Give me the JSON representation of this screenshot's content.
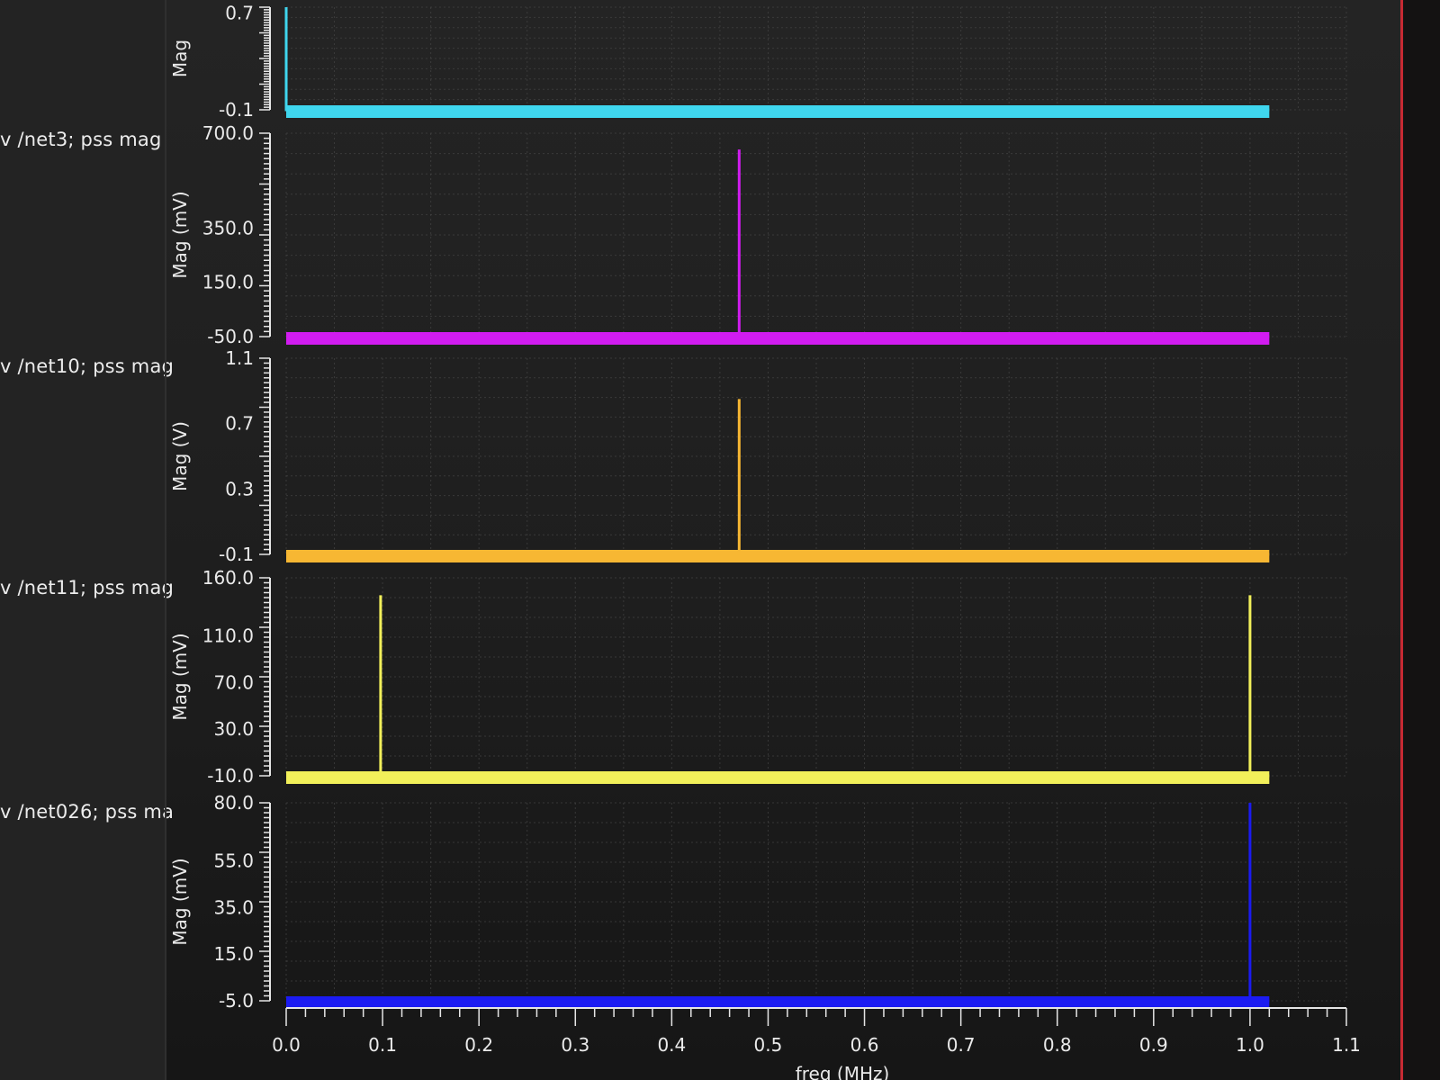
{
  "colors": {
    "background": "#1e1e1e",
    "grid": "#4a4a4a",
    "axis": "#e6e6e6",
    "frame_accent": "#c72a33"
  },
  "traces": [
    {
      "name": "v /net3; pss mag",
      "color": "#d11cf0"
    },
    {
      "name": "v /net10; pss mag",
      "color": "#f7b733"
    },
    {
      "name": "v /net11; pss mag",
      "color": "#f2f05a"
    },
    {
      "name": "v /net026; pss ma",
      "color": "#1b1bf2"
    }
  ],
  "chart_data": {
    "type": "line",
    "xlabel": "freq (MHz)",
    "xlim": [
      0.0,
      1.1
    ],
    "x_ticks": [
      "0.0",
      "0.1",
      "0.2",
      "0.3",
      "0.4",
      "0.5",
      "0.6",
      "0.7",
      "0.8",
      "0.9",
      "1.0",
      "1.1"
    ],
    "grid": true,
    "panels": [
      {
        "id": "top",
        "ylabel": "Mag",
        "ylim": [
          -0.1,
          0.75
        ],
        "y_ticks": [
          "0.7",
          "-0.1"
        ],
        "tick_values": [
          0.7,
          -0.1
        ],
        "color": "#3fd6ee",
        "series": [
          {
            "x": [
              0.0,
              0.0,
              1.02
            ],
            "y": [
              0.75,
              -0.1,
              -0.1
            ]
          }
        ]
      },
      {
        "id": "net3",
        "ylabel": "Mag (mV)",
        "ylim": [
          -50.0,
          700.0
        ],
        "y_ticks": [
          "700.0",
          "350.0",
          "150.0",
          "-50.0"
        ],
        "tick_values": [
          700.0,
          350.0,
          150.0,
          -50.0
        ],
        "color": "#d11cf0",
        "series": [
          {
            "name": "v /net3; pss mag",
            "x": [
              0.0,
              0.47,
              0.47,
              0.47,
              1.02
            ],
            "y": [
              -50.0,
              -50.0,
              640.0,
              -50.0,
              -50.0
            ]
          }
        ]
      },
      {
        "id": "net10",
        "ylabel": "Mag (V)",
        "ylim": [
          -0.1,
          1.1
        ],
        "y_ticks": [
          "1.1",
          "0.7",
          "0.3",
          "-0.1"
        ],
        "tick_values": [
          1.1,
          0.7,
          0.3,
          -0.1
        ],
        "color": "#f7b733",
        "series": [
          {
            "name": "v /net10; pss mag",
            "x": [
              0.0,
              0.47,
              0.47,
              0.47,
              1.02
            ],
            "y": [
              -0.1,
              -0.1,
              0.85,
              -0.1,
              -0.1
            ]
          }
        ]
      },
      {
        "id": "net11",
        "ylabel": "Mag (mV)",
        "ylim": [
          -10.0,
          160.0
        ],
        "y_ticks": [
          "160.0",
          "110.0",
          "70.0",
          "30.0",
          "-10.0"
        ],
        "tick_values": [
          160.0,
          110.0,
          70.0,
          30.0,
          -10.0
        ],
        "color": "#f2f05a",
        "series": [
          {
            "name": "v /net11; pss mag",
            "x": [
              0.0,
              0.098,
              0.098,
              0.098,
              1.0,
              1.0,
              1.0,
              1.02
            ],
            "y": [
              -10.0,
              -10.0,
              145.0,
              -10.0,
              -10.0,
              145.0,
              -10.0,
              -10.0
            ]
          }
        ]
      },
      {
        "id": "net026",
        "ylabel": "Mag (mV)",
        "ylim": [
          -5.0,
          80.0
        ],
        "y_ticks": [
          "80.0",
          "55.0",
          "35.0",
          "15.0",
          "-5.0"
        ],
        "tick_values": [
          80.0,
          55.0,
          35.0,
          15.0,
          -5.0
        ],
        "color": "#1b1bf2",
        "series": [
          {
            "name": "v /net026; pss ma",
            "x": [
              0.0,
              1.0,
              1.0,
              1.0,
              1.02
            ],
            "y": [
              -5.0,
              -5.0,
              80.0,
              -5.0,
              -5.0
            ]
          }
        ]
      }
    ]
  }
}
